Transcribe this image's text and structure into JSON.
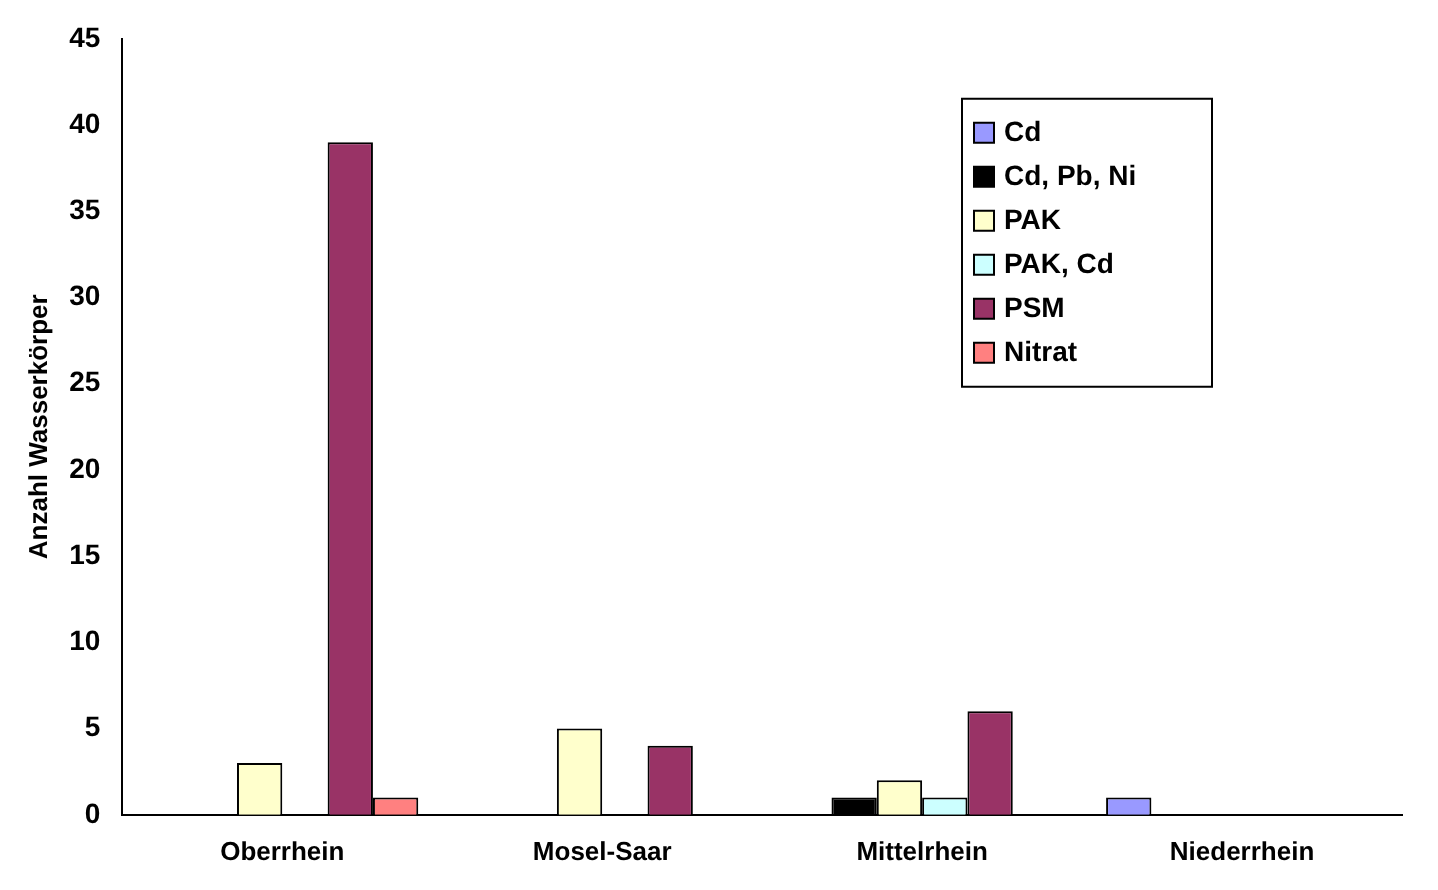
{
  "chart_data": {
    "type": "bar",
    "ylabel": "Anzahl Wasserkörper",
    "categories": [
      "Oberrhein",
      "Mosel-Saar",
      "Mittelrhein",
      "Niederrhein"
    ],
    "series": [
      {
        "name": "Cd",
        "color": "#9999ff",
        "values": [
          0,
          0,
          0,
          1
        ]
      },
      {
        "name": "Cd, Pb, Ni",
        "color": "#000000",
        "values": [
          0,
          0,
          1,
          0
        ]
      },
      {
        "name": "PAK",
        "color": "#ffffcc",
        "values": [
          3,
          5,
          2,
          0
        ]
      },
      {
        "name": "PAK, Cd",
        "color": "#ccffff",
        "values": [
          0,
          0,
          1,
          0
        ]
      },
      {
        "name": "PSM",
        "color": "#993366",
        "values": [
          39,
          4,
          6,
          0
        ]
      },
      {
        "name": "Nitrat",
        "color": "#ff8080",
        "values": [
          1,
          0,
          0,
          0
        ]
      }
    ],
    "ylim": [
      0,
      45
    ],
    "yticks": [
      0,
      5,
      10,
      15,
      20,
      25,
      30,
      35,
      40,
      45
    ],
    "grid": false,
    "legend": "top right"
  }
}
